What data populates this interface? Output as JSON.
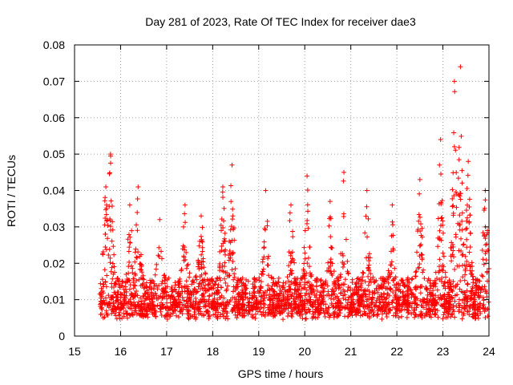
{
  "chart_data": {
    "type": "scatter",
    "title": "Day 281 of 2023, Rate Of TEC Index for receiver dae3",
    "xlabel": "GPS time / hours",
    "ylabel": "ROTI / TECUs",
    "xlim": [
      15,
      24
    ],
    "ylim": [
      0,
      0.08
    ],
    "xticks": [
      "15",
      "16",
      "17",
      "18",
      "19",
      "20",
      "21",
      "22",
      "23",
      "24"
    ],
    "yticks": [
      "0",
      "0.01",
      "0.02",
      "0.03",
      "0.04",
      "0.05",
      "0.06",
      "0.07",
      "0.08"
    ],
    "grid": true,
    "marker": "+",
    "color": "#ff0000",
    "x_start": 15.55,
    "x_end": 24.0,
    "peaks": [
      {
        "x": 15.68,
        "y": 0.041
      },
      {
        "x": 15.78,
        "y": 0.05
      },
      {
        "x": 16.2,
        "y": 0.036
      },
      {
        "x": 16.38,
        "y": 0.041
      },
      {
        "x": 16.85,
        "y": 0.032
      },
      {
        "x": 17.4,
        "y": 0.036
      },
      {
        "x": 17.75,
        "y": 0.033
      },
      {
        "x": 18.22,
        "y": 0.041
      },
      {
        "x": 18.42,
        "y": 0.047
      },
      {
        "x": 19.15,
        "y": 0.04
      },
      {
        "x": 19.7,
        "y": 0.036
      },
      {
        "x": 20.05,
        "y": 0.044
      },
      {
        "x": 20.55,
        "y": 0.037
      },
      {
        "x": 20.85,
        "y": 0.045
      },
      {
        "x": 21.35,
        "y": 0.04
      },
      {
        "x": 21.9,
        "y": 0.036
      },
      {
        "x": 22.5,
        "y": 0.043
      },
      {
        "x": 22.95,
        "y": 0.054
      },
      {
        "x": 23.25,
        "y": 0.07
      },
      {
        "x": 23.38,
        "y": 0.074
      },
      {
        "x": 23.55,
        "y": 0.048
      },
      {
        "x": 23.92,
        "y": 0.04
      }
    ]
  }
}
